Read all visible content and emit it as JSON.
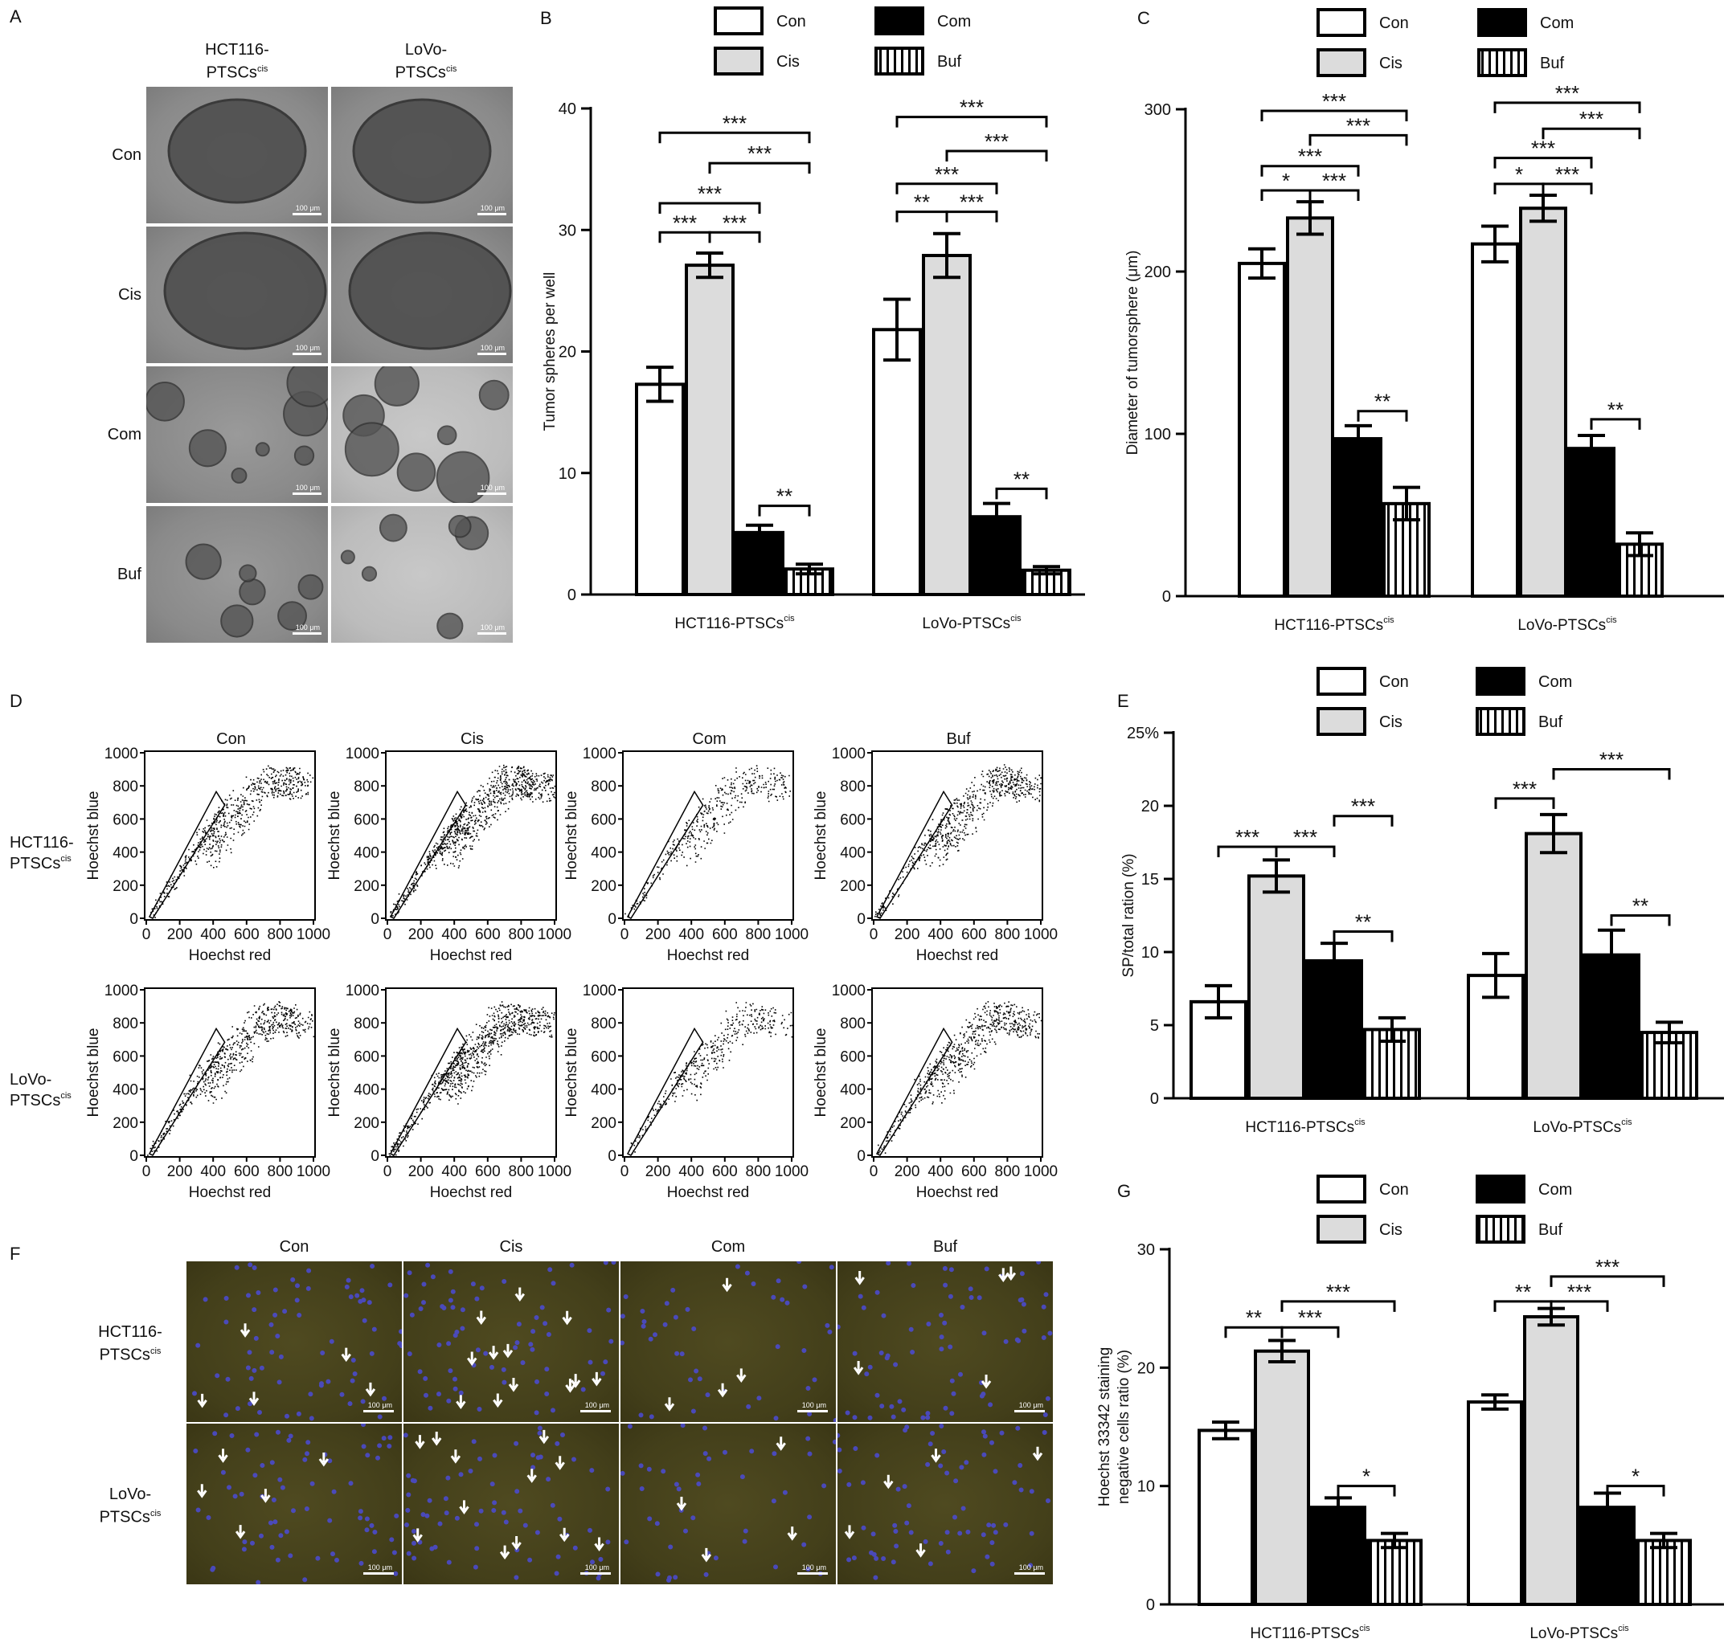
{
  "panels": {
    "A": {
      "label": "A",
      "col_labels": [
        [
          "HCT116-",
          "PTSCs",
          "cis"
        ],
        [
          "LoVo-",
          "PTSCs",
          "cis"
        ]
      ],
      "row_labels": [
        "Con",
        "Cis",
        "Com",
        "Buf"
      ],
      "scale_bar": "100 μm"
    },
    "D": {
      "label": "D",
      "col_labels": [
        "Con",
        "Cis",
        "Com",
        "Buf"
      ],
      "row_labels": [
        [
          "HCT116-",
          "PTSCs",
          "cis"
        ],
        [
          "LoVo-",
          "PTSCs",
          "cis"
        ]
      ],
      "xlabel": "Hoechst red",
      "ylabel": "Hoechst blue",
      "ticks": [
        "0",
        "200",
        "400",
        "600",
        "800",
        "1000"
      ]
    },
    "F": {
      "label": "F",
      "col_labels": [
        "Con",
        "Cis",
        "Com",
        "Buf"
      ],
      "row_labels": [
        [
          "HCT116-",
          "PTSCs",
          "cis"
        ],
        [
          "LoVo-",
          "PTSCs",
          "cis"
        ]
      ],
      "scale_bar": "100 μm"
    }
  },
  "legend": {
    "items": [
      {
        "label": "Con",
        "style": "white"
      },
      {
        "label": "Cis",
        "style": "lightgray"
      },
      {
        "label": "Com",
        "style": "black"
      },
      {
        "label": "Buf",
        "style": "hatched"
      }
    ]
  },
  "chart_data": [
    {
      "id": "B",
      "type": "bar",
      "panel_label": "B",
      "ylabel": "Tumor spheres per well",
      "ylim": [
        0,
        40
      ],
      "yticks": [
        0,
        10,
        20,
        30,
        40
      ],
      "categories": [
        [
          "HCT116-PTSCs",
          "cis"
        ],
        [
          "LoVo-PTSCs",
          "cis"
        ]
      ],
      "series": [
        {
          "name": "Con",
          "values": [
            17.3,
            21.8
          ],
          "errors": [
            1.4,
            2.5
          ]
        },
        {
          "name": "Cis",
          "values": [
            27.1,
            27.9
          ],
          "errors": [
            1.0,
            1.8
          ]
        },
        {
          "name": "Com",
          "values": [
            5.1,
            6.4
          ],
          "errors": [
            0.6,
            1.1
          ]
        },
        {
          "name": "Buf",
          "values": [
            2.1,
            2.0
          ],
          "errors": [
            0.4,
            0.3
          ]
        }
      ],
      "significance": [
        {
          "group": 0,
          "from": 0,
          "to": 1,
          "y": 29.8,
          "label": "***"
        },
        {
          "group": 0,
          "from": 1,
          "to": 2,
          "y": 29.8,
          "label": "***"
        },
        {
          "group": 0,
          "from": 0,
          "to": 2,
          "y": 32.2,
          "label": "***"
        },
        {
          "group": 0,
          "from": 1,
          "to": 3,
          "y": 35.5,
          "label": "***"
        },
        {
          "group": 0,
          "from": 0,
          "to": 3,
          "y": 38.0,
          "label": "***"
        },
        {
          "group": 0,
          "from": 2,
          "to": 3,
          "y": 7.3,
          "label": "**"
        },
        {
          "group": 1,
          "from": 0,
          "to": 1,
          "y": 31.5,
          "label": "**"
        },
        {
          "group": 1,
          "from": 1,
          "to": 2,
          "y": 31.5,
          "label": "***"
        },
        {
          "group": 1,
          "from": 0,
          "to": 2,
          "y": 33.8,
          "label": "***"
        },
        {
          "group": 1,
          "from": 1,
          "to": 3,
          "y": 36.5,
          "label": "***"
        },
        {
          "group": 1,
          "from": 0,
          "to": 3,
          "y": 39.3,
          "label": "***"
        },
        {
          "group": 1,
          "from": 2,
          "to": 3,
          "y": 8.7,
          "label": "**"
        }
      ]
    },
    {
      "id": "C",
      "type": "bar",
      "panel_label": "C",
      "ylabel": "Diameter of tumorsphere (μm)",
      "ylim": [
        0,
        300
      ],
      "yticks": [
        0,
        100,
        200,
        300
      ],
      "categories": [
        [
          "HCT116-PTSCs",
          "cis"
        ],
        [
          "LoVo-PTSCs",
          "cis"
        ]
      ],
      "series": [
        {
          "name": "Con",
          "values": [
            205,
            217
          ],
          "errors": [
            9,
            11
          ]
        },
        {
          "name": "Cis",
          "values": [
            233,
            239
          ],
          "errors": [
            10,
            8
          ]
        },
        {
          "name": "Com",
          "values": [
            97,
            91
          ],
          "errors": [
            8,
            8
          ]
        },
        {
          "name": "Buf",
          "values": [
            57,
            32
          ],
          "errors": [
            10,
            7
          ]
        }
      ],
      "significance": [
        {
          "group": 0,
          "from": 0,
          "to": 1,
          "y": 250,
          "label": "*"
        },
        {
          "group": 0,
          "from": 1,
          "to": 2,
          "y": 250,
          "label": "***"
        },
        {
          "group": 0,
          "from": 0,
          "to": 2,
          "y": 265,
          "label": "***"
        },
        {
          "group": 0,
          "from": 1,
          "to": 3,
          "y": 284,
          "label": "***"
        },
        {
          "group": 0,
          "from": 0,
          "to": 3,
          "y": 299,
          "label": "***"
        },
        {
          "group": 0,
          "from": 2,
          "to": 3,
          "y": 114,
          "label": "**"
        },
        {
          "group": 1,
          "from": 0,
          "to": 1,
          "y": 254,
          "label": "*"
        },
        {
          "group": 1,
          "from": 1,
          "to": 2,
          "y": 254,
          "label": "***"
        },
        {
          "group": 1,
          "from": 0,
          "to": 2,
          "y": 270,
          "label": "***"
        },
        {
          "group": 1,
          "from": 1,
          "to": 3,
          "y": 288,
          "label": "***"
        },
        {
          "group": 1,
          "from": 0,
          "to": 3,
          "y": 304,
          "label": "***"
        }
      ],
      "extra_brackets": [
        {
          "group": 1,
          "from": 2,
          "to": 3,
          "y": 109,
          "label": "**"
        }
      ]
    },
    {
      "id": "E",
      "type": "bar",
      "panel_label": "E",
      "ylabel": "SP/total ration (%)",
      "ylim": [
        0,
        25
      ],
      "yticks": [
        "0",
        "5",
        "10",
        "15",
        "20",
        "25%"
      ],
      "categories": [
        [
          "HCT116-PTSCs",
          "cis"
        ],
        [
          "LoVo-PTSCs",
          "cis"
        ]
      ],
      "series": [
        {
          "name": "Con",
          "values": [
            6.6,
            8.4
          ],
          "errors": [
            1.1,
            1.5
          ]
        },
        {
          "name": "Cis",
          "values": [
            15.2,
            18.1
          ],
          "errors": [
            1.1,
            1.3
          ]
        },
        {
          "name": "Com",
          "values": [
            9.4,
            9.8
          ],
          "errors": [
            1.2,
            1.7
          ]
        },
        {
          "name": "Buf",
          "values": [
            4.7,
            4.5
          ],
          "errors": [
            0.8,
            0.7
          ]
        }
      ],
      "significance": [
        {
          "group": 0,
          "from": 0,
          "to": 1,
          "y": 17.2,
          "label": "***"
        },
        {
          "group": 0,
          "from": 1,
          "to": 2,
          "y": 17.2,
          "label": "***"
        },
        {
          "group": 0,
          "from": 2,
          "to": 3,
          "y": 19.3,
          "label": "***"
        },
        {
          "group": 0,
          "from": 2,
          "to": 3,
          "y": 11.4,
          "label": "**"
        },
        {
          "group": 1,
          "from": 0,
          "to": 1,
          "y": 20.5,
          "label": "***"
        },
        {
          "group": 1,
          "from": 1,
          "to": 3,
          "y": 22.5,
          "label": "***"
        },
        {
          "group": 1,
          "from": 2,
          "to": 3,
          "y": 12.5,
          "label": "**"
        }
      ]
    },
    {
      "id": "G",
      "type": "bar",
      "panel_label": "G",
      "ylabel": [
        "Hoechst 33342 staining",
        "negative cells ratio (%)"
      ],
      "ylim": [
        0,
        30
      ],
      "yticks": [
        0,
        10,
        20,
        30
      ],
      "categories": [
        [
          "HCT116-PTSCs",
          "cis"
        ],
        [
          "LoVo-PTSCs",
          "cis"
        ]
      ],
      "series": [
        {
          "name": "Con",
          "values": [
            14.7,
            17.1
          ],
          "errors": [
            0.7,
            0.6
          ]
        },
        {
          "name": "Cis",
          "values": [
            21.4,
            24.3
          ],
          "errors": [
            0.9,
            0.7
          ]
        },
        {
          "name": "Com",
          "values": [
            8.2,
            8.2
          ],
          "errors": [
            0.8,
            1.2
          ]
        },
        {
          "name": "Buf",
          "values": [
            5.4,
            5.4
          ],
          "errors": [
            0.6,
            0.6
          ]
        }
      ],
      "significance": [
        {
          "group": 0,
          "from": 0,
          "to": 1,
          "y": 23.4,
          "label": "**"
        },
        {
          "group": 0,
          "from": 1,
          "to": 2,
          "y": 23.4,
          "label": "***"
        },
        {
          "group": 0,
          "from": 1,
          "to": 3,
          "y": 25.6,
          "label": "***"
        },
        {
          "group": 0,
          "from": 2,
          "to": 3,
          "y": 10.0,
          "label": "*"
        },
        {
          "group": 1,
          "from": 0,
          "to": 1,
          "y": 25.6,
          "label": "**"
        },
        {
          "group": 1,
          "from": 1,
          "to": 2,
          "y": 25.6,
          "label": "***"
        },
        {
          "group": 1,
          "from": 1,
          "to": 3,
          "y": 27.7,
          "label": "***"
        },
        {
          "group": 1,
          "from": 2,
          "to": 3,
          "y": 10.0,
          "label": "*"
        }
      ]
    }
  ]
}
